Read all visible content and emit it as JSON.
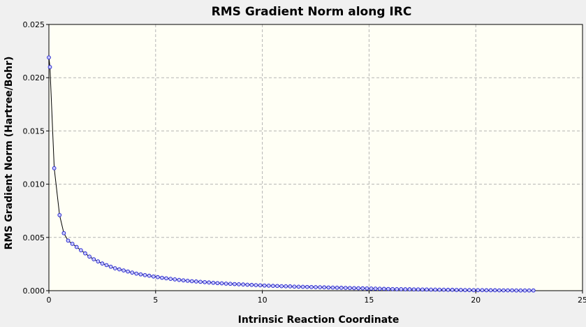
{
  "chart_data": {
    "type": "scatter",
    "title": "RMS Gradient Norm along IRC",
    "xlabel": "Intrinsic Reaction Coordinate",
    "ylabel": "RMS Gradient Norm (Hartree/Bohr)",
    "xlim": [
      0,
      25
    ],
    "ylim": [
      0,
      0.025
    ],
    "x_ticks": [
      "0",
      "5",
      "10",
      "15",
      "20",
      "25"
    ],
    "y_ticks": [
      "0.000",
      "0.005",
      "0.010",
      "0.015",
      "0.020",
      "0.025"
    ],
    "grid": true,
    "colors": {
      "plot_background": "#fffff5",
      "page_background": "#f0f0f0",
      "line": "#000000",
      "marker_fill": "#c8c8ff",
      "marker_stroke": "#1a1acc",
      "grid": "#b4b4b4"
    },
    "series": [
      {
        "x": [
          0.0,
          0.05,
          0.25,
          0.5,
          0.7,
          0.9,
          1.1,
          1.3,
          1.5,
          1.7,
          1.9,
          2.1,
          2.3,
          2.5,
          2.7,
          2.9,
          3.1,
          3.3,
          3.5,
          3.7,
          3.9,
          4.1,
          4.3,
          4.5,
          4.7,
          4.9,
          5.1,
          5.3,
          5.5,
          5.7,
          5.9,
          6.1,
          6.3,
          6.5,
          6.7,
          6.9,
          7.1,
          7.3,
          7.5,
          7.7,
          7.9,
          8.1,
          8.3,
          8.5,
          8.7,
          8.9,
          9.1,
          9.3,
          9.5,
          9.7,
          9.9,
          10.1,
          10.3,
          10.5,
          10.7,
          10.9,
          11.1,
          11.3,
          11.5,
          11.7,
          11.9,
          12.1,
          12.3,
          12.5,
          12.7,
          12.9,
          13.1,
          13.3,
          13.5,
          13.7,
          13.9,
          14.1,
          14.3,
          14.5,
          14.7,
          14.9,
          15.1,
          15.3,
          15.5,
          15.7,
          15.9,
          16.1,
          16.3,
          16.5,
          16.7,
          16.9,
          17.1,
          17.3,
          17.5,
          17.7,
          17.9,
          18.1,
          18.3,
          18.5,
          18.7,
          18.9,
          19.1,
          19.3,
          19.5,
          19.7,
          19.9,
          20.1,
          20.3,
          20.5,
          20.7,
          20.9,
          21.1,
          21.3,
          21.5,
          21.7,
          21.9,
          22.1,
          22.3,
          22.5,
          22.7
        ],
        "y": [
          0.0219,
          0.021,
          0.0115,
          0.0071,
          0.0054,
          0.0047,
          0.0044,
          0.0041,
          0.0038,
          0.0035,
          0.0032,
          0.00295,
          0.00275,
          0.00255,
          0.0024,
          0.00225,
          0.0021,
          0.002,
          0.0019,
          0.0018,
          0.0017,
          0.0016,
          0.00153,
          0.00146,
          0.0014,
          0.00133,
          0.00127,
          0.00121,
          0.00116,
          0.00111,
          0.00106,
          0.00101,
          0.00097,
          0.00093,
          0.00089,
          0.00086,
          0.00083,
          0.0008,
          0.00077,
          0.00074,
          0.00071,
          0.00069,
          0.00066,
          0.00064,
          0.00062,
          0.0006,
          0.00058,
          0.00056,
          0.00054,
          0.00052,
          0.0005,
          0.00048,
          0.00047,
          0.00045,
          0.00044,
          0.00042,
          0.00041,
          0.0004,
          0.00038,
          0.00037,
          0.00036,
          0.00035,
          0.00034,
          0.00033,
          0.00032,
          0.00031,
          0.0003,
          0.00029,
          0.00028,
          0.00027,
          0.00026,
          0.00025,
          0.00024,
          0.00023,
          0.00022,
          0.00021,
          0.0002,
          0.00019,
          0.00018,
          0.00017,
          0.00016,
          0.00015,
          0.00014,
          0.00014,
          0.00013,
          0.00013,
          0.00012,
          0.00012,
          0.00011,
          0.00011,
          0.0001,
          0.0001,
          9e-05,
          9e-05,
          8e-05,
          8e-05,
          7e-05,
          7e-05,
          6e-05,
          6e-05,
          5e-05,
          5e-05,
          5e-05,
          4e-05,
          4e-05,
          4e-05,
          3e-05,
          3e-05,
          3e-05,
          3e-05,
          2e-05,
          2e-05,
          2e-05,
          2e-05,
          2e-05
        ]
      }
    ]
  }
}
